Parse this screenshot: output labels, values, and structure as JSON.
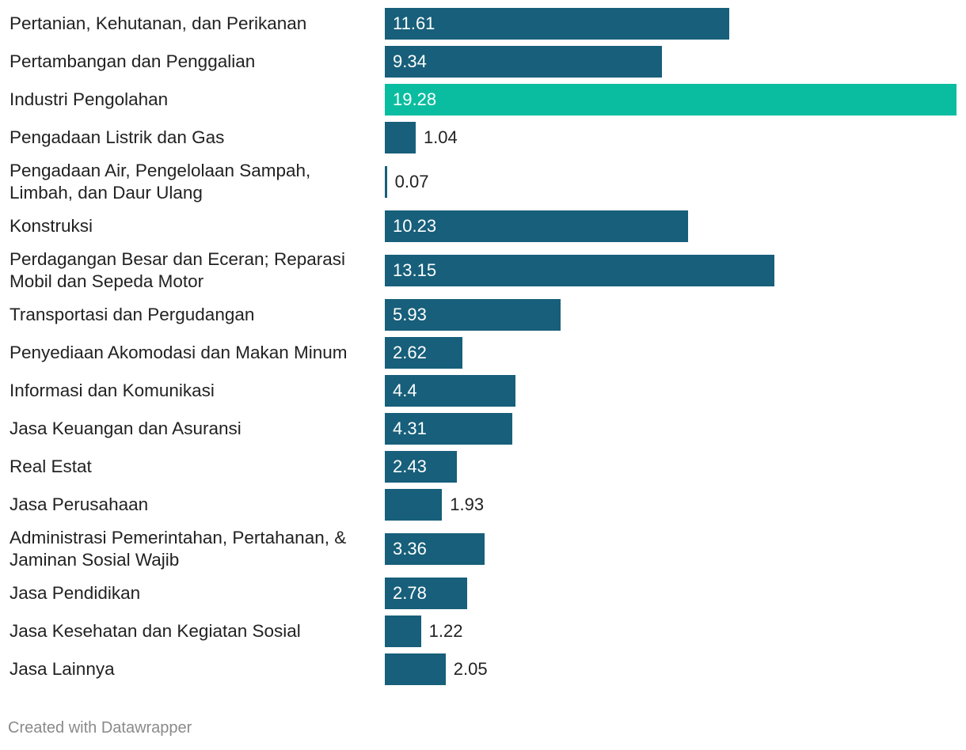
{
  "chart_data": {
    "type": "bar",
    "orientation": "horizontal",
    "categories": [
      "Pertanian, Kehutanan, dan Perikanan",
      "Pertambangan dan Penggalian",
      "Industri Pengolahan",
      "Pengadaan Listrik dan Gas",
      "Pengadaan Air, Pengelolaan Sampah, Limbah, dan Daur Ulang",
      "Konstruksi",
      "Perdagangan Besar dan Eceran; Reparasi Mobil dan Sepeda Motor",
      "Transportasi dan Pergudangan",
      "Penyediaan Akomodasi dan Makan Minum",
      "Informasi dan Komunikasi",
      "Jasa Keuangan dan Asuransi",
      "Real Estat",
      "Jasa Perusahaan",
      "Administrasi Pemerintahan, Pertahanan, & Jaminan Sosial Wajib",
      "Jasa Pendidikan",
      "Jasa Kesehatan dan Kegiatan Sosial",
      "Jasa Lainnya"
    ],
    "values": [
      11.61,
      9.34,
      19.28,
      1.04,
      0.07,
      10.23,
      13.15,
      5.93,
      2.62,
      4.4,
      4.31,
      2.43,
      1.93,
      3.36,
      2.78,
      1.22,
      2.05
    ],
    "value_labels": [
      "11.61",
      "9.34",
      "19.28",
      "1.04",
      "0.07",
      "10.23",
      "13.15",
      "5.93",
      "2.62",
      "4.4",
      "4.31",
      "2.43",
      "1.93",
      "3.36",
      "2.78",
      "1.22",
      "2.05"
    ],
    "highlight_index": 2,
    "colors": {
      "default": "#175f7a",
      "highlight": "#0bbda0"
    },
    "xlim": [
      0,
      19.28
    ],
    "title": "",
    "xlabel": "",
    "ylabel": ""
  },
  "footer": {
    "credit": "Created with Datawrapper"
  }
}
